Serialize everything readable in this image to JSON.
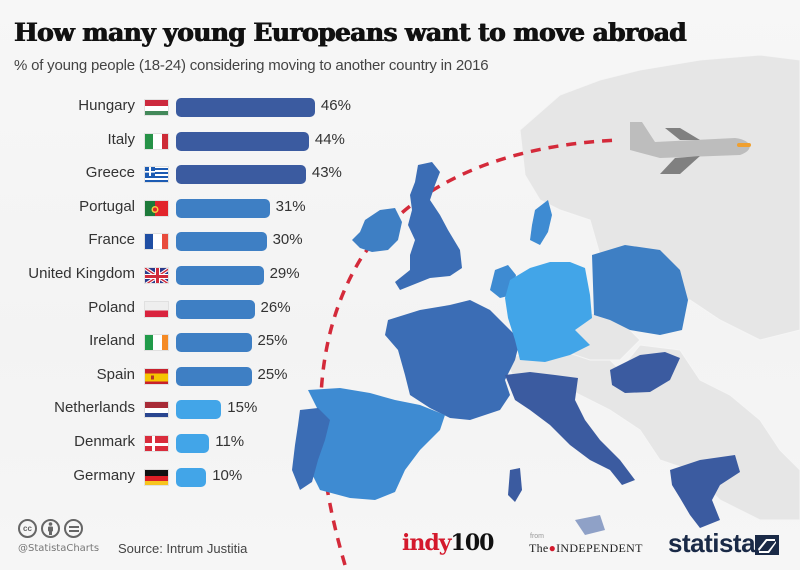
{
  "header": {
    "title": "How many young Europeans want to move abroad",
    "subtitle": "% of young people (18-24) considering moving to another country in 2016"
  },
  "chart_data": {
    "type": "bar",
    "orientation": "horizontal",
    "title": "How many young Europeans want to move abroad",
    "subtitle": "% of young people (18-24) considering moving to another country in 2016",
    "xlabel": "",
    "ylabel": "",
    "unit": "%",
    "categories": [
      "Hungary",
      "Italy",
      "Greece",
      "Portugal",
      "France",
      "United Kingdom",
      "Poland",
      "Ireland",
      "Spain",
      "Netherlands",
      "Denmark",
      "Germany"
    ],
    "values": [
      46,
      44,
      43,
      31,
      30,
      29,
      26,
      25,
      25,
      15,
      11,
      10
    ],
    "value_labels": [
      "46%",
      "44%",
      "43%",
      "31%",
      "30%",
      "29%",
      "26%",
      "25%",
      "25%",
      "15%",
      "11%",
      "10%"
    ],
    "flags": [
      "hungary-flag",
      "italy-flag",
      "greece-flag",
      "portugal-flag",
      "france-flag",
      "uk-flag",
      "poland-flag",
      "ireland-flag",
      "spain-flag",
      "netherlands-flag",
      "denmark-flag",
      "germany-flag"
    ],
    "grid": false,
    "legend": "none"
  },
  "colors": {
    "bar_dark": "#3b5ba0",
    "bar_mid": "#3e7fc4",
    "bar_light": "#42a5e8",
    "route_line": "#d42a3a",
    "plane": "#bcbcbc",
    "land_grey": "#e4e4e4"
  },
  "footer": {
    "license_icons": [
      "cc-icon",
      "attribution-icon",
      "no-derivatives-icon"
    ],
    "cc_label": "cc",
    "handle": "@StatistaCharts",
    "source": "Source: Intrum Justitia",
    "indy_red": "indy",
    "indy_black": "100",
    "from_label": "from",
    "independent_the": "The",
    "independent_name": "INDEPENDENT",
    "statista": "statista"
  }
}
